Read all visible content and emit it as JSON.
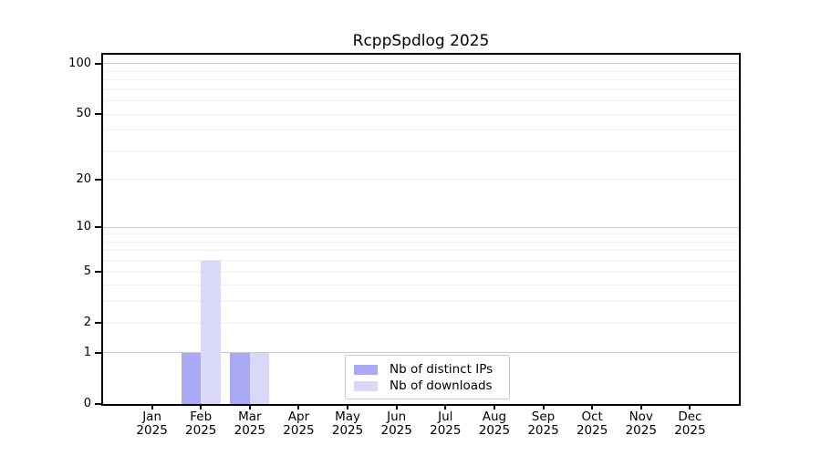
{
  "chart_data": {
    "type": "bar",
    "title": "RcppSpdlog 2025",
    "categories": [
      "Jan",
      "Feb",
      "Mar",
      "Apr",
      "May",
      "Jun",
      "Jul",
      "Aug",
      "Sep",
      "Oct",
      "Nov",
      "Dec"
    ],
    "category_year": "2025",
    "series": [
      {
        "name": "Nb of distinct IPs",
        "color": "#a9a9f5",
        "values": [
          0,
          1,
          1,
          0,
          0,
          0,
          0,
          0,
          0,
          0,
          0,
          0
        ]
      },
      {
        "name": "Nb of downloads",
        "color": "#d9d9f7",
        "values": [
          0,
          6,
          1,
          0,
          0,
          0,
          0,
          0,
          0,
          0,
          0,
          0
        ]
      }
    ],
    "yscale": "log1p",
    "yticks": [
      0,
      1,
      2,
      5,
      10,
      20,
      50,
      100
    ],
    "major_gridlines": [
      1,
      10,
      100
    ],
    "minor_gridlines": [
      2,
      3,
      4,
      5,
      6,
      7,
      8,
      9,
      20,
      30,
      40,
      50,
      60,
      70,
      80,
      90
    ],
    "ylim": [
      0,
      113
    ],
    "xlim": [
      -1,
      12
    ],
    "bar_width_units": 0.4,
    "grid": true,
    "legend": {
      "position": "lower center",
      "entries": [
        "Nb of distinct IPs",
        "Nb of downloads"
      ]
    }
  },
  "colors": {
    "background": "#ffffff",
    "axis": "#000000",
    "text": "#000000",
    "grid_major": "#c9c9c9",
    "grid_minor": "#efefef",
    "legend_border": "#c9c9c9"
  }
}
